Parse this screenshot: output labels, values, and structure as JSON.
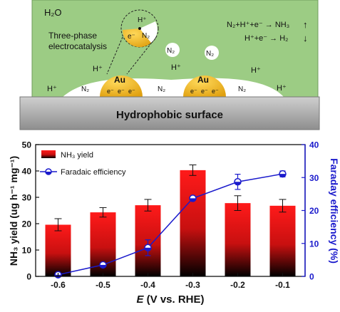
{
  "schematic": {
    "water_label": "H₂O",
    "three_phase_label_line1": "Three-phase",
    "three_phase_label_line2": "electrocatalysis",
    "reaction_1": "N₂+H⁺+e⁻ → NH₃",
    "reaction_2": "H⁺+e⁻ → H₂",
    "reaction_1_arrow": "↑",
    "reaction_2_arrow": "↓",
    "gold_label": "Au",
    "electron_label": "e⁻",
    "n2_label": "N₂",
    "proton_label": "H⁺",
    "surface_label": "Hydrophobic surface",
    "colors": {
      "liquid": "#9ccc84",
      "liquid_border": "#6f9c5c",
      "gold": "#f0b81e",
      "gas_pocket": "#ffffff",
      "surface": "#a8a8a8"
    }
  },
  "chart_data": {
    "type": "bar",
    "categories": [
      "-0.6",
      "-0.5",
      "-0.4",
      "-0.3",
      "-0.2",
      "-0.1"
    ],
    "xlabel_italic": "E",
    "xlabel_rest": " (V vs. RHE)",
    "ylabel": "NH₃ yield (ug h⁻¹ mg⁻¹)",
    "y2label": "Faraday efficiency (%)",
    "ylim": [
      0,
      50
    ],
    "y2lim": [
      0,
      40
    ],
    "yticks": [
      0,
      10,
      20,
      30,
      40,
      50
    ],
    "y2ticks": [
      0,
      10,
      20,
      30,
      40
    ],
    "grid": false,
    "legend_position": "top-left",
    "series": [
      {
        "name": "NH₃ yield",
        "type": "bar",
        "axis": "left",
        "values": [
          19.6,
          24.3,
          27.0,
          40.3,
          27.8,
          26.8
        ],
        "errors": [
          2.3,
          1.8,
          2.2,
          2.0,
          2.8,
          2.4
        ],
        "color_top": "#ff1a1a",
        "color_bottom": "#000000"
      },
      {
        "name": "Faradaic efficiency",
        "type": "line",
        "axis": "right",
        "values": [
          0.5,
          3.5,
          8.7,
          23.7,
          28.7,
          31.1
        ],
        "errors": [
          0.4,
          0.5,
          2.4,
          0.5,
          2.3,
          0.9
        ],
        "color": "#1a1acc"
      }
    ]
  }
}
